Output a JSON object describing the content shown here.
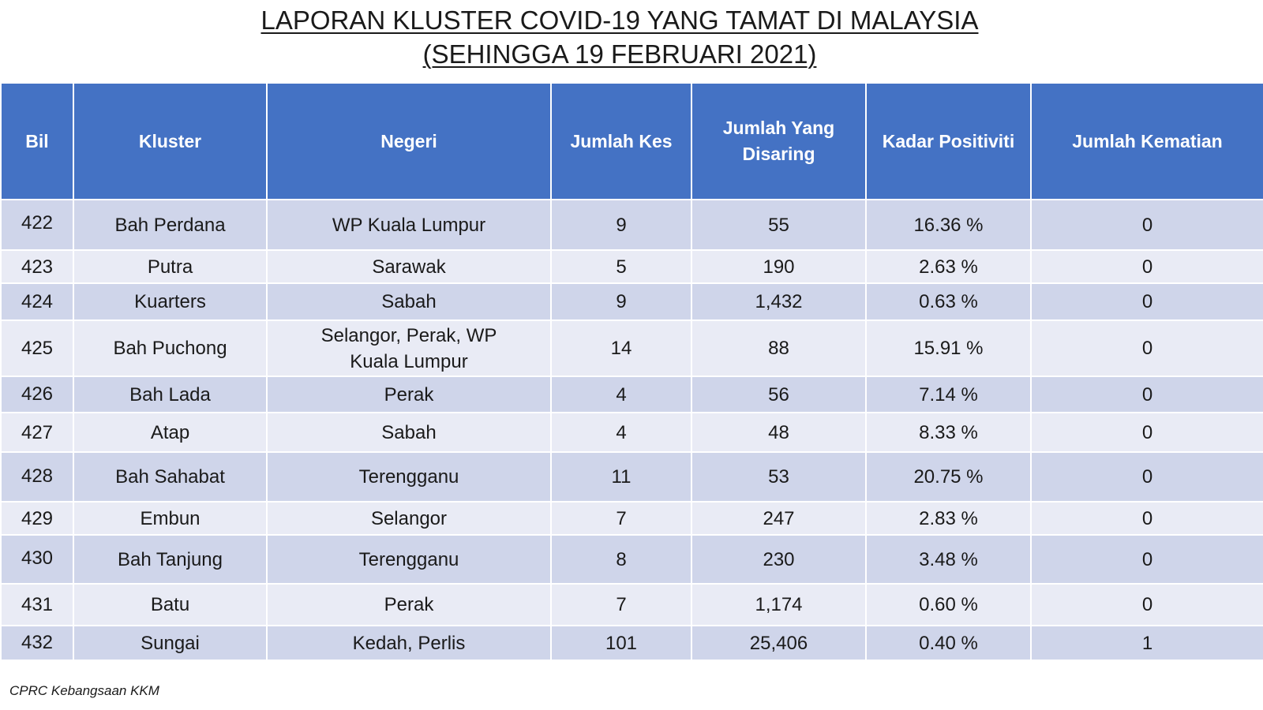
{
  "title": {
    "line1": "LAPORAN KLUSTER COVID-19 YANG TAMAT DI MALAYSIA",
    "line2": "(SEHINGGA 19 FEBRUARI 2021)"
  },
  "table": {
    "headers": [
      "Bil",
      "Kluster",
      "Negeri",
      "Jumlah Kes",
      "Jumlah Yang Disaring",
      "Kadar Positiviti",
      "Jumlah Kematian"
    ],
    "rows": [
      {
        "bil": "422",
        "kluster": "Bah Perdana",
        "negeri": "WP Kuala Lumpur",
        "kes": "9",
        "disaring": "55",
        "positiviti": "16.36 %",
        "kematian": "0"
      },
      {
        "bil": "423",
        "kluster": "Putra",
        "negeri": "Sarawak",
        "kes": "5",
        "disaring": "190",
        "positiviti": "2.63 %",
        "kematian": "0"
      },
      {
        "bil": "424",
        "kluster": "Kuarters",
        "negeri": "Sabah",
        "kes": "9",
        "disaring": "1,432",
        "positiviti": "0.63 %",
        "kematian": "0"
      },
      {
        "bil": "425",
        "kluster": "Bah Puchong",
        "negeri": "Selangor, Perak, WP Kuala Lumpur",
        "kes": "14",
        "disaring": "88",
        "positiviti": "15.91 %",
        "kematian": "0"
      },
      {
        "bil": "426",
        "kluster": "Bah Lada",
        "negeri": "Perak",
        "kes": "4",
        "disaring": "56",
        "positiviti": "7.14 %",
        "kematian": "0"
      },
      {
        "bil": "427",
        "kluster": "Atap",
        "negeri": "Sabah",
        "kes": "4",
        "disaring": "48",
        "positiviti": "8.33 %",
        "kematian": "0"
      },
      {
        "bil": "428",
        "kluster": "Bah Sahabat",
        "negeri": "Terengganu",
        "kes": "11",
        "disaring": "53",
        "positiviti": "20.75 %",
        "kematian": "0"
      },
      {
        "bil": "429",
        "kluster": "Embun",
        "negeri": "Selangor",
        "kes": "7",
        "disaring": "247",
        "positiviti": "2.83 %",
        "kematian": "0"
      },
      {
        "bil": "430",
        "kluster": "Bah Tanjung",
        "negeri": "Terengganu",
        "kes": "8",
        "disaring": "230",
        "positiviti": "3.48 %",
        "kematian": "0"
      },
      {
        "bil": "431",
        "kluster": "Batu",
        "negeri": "Perak",
        "kes": "7",
        "disaring": "1,174",
        "positiviti": "0.60 %",
        "kematian": "0"
      },
      {
        "bil": "432",
        "kluster": "Sungai",
        "negeri": "Kedah, Perlis",
        "kes": "101",
        "disaring": "25,406",
        "positiviti": "0.40 %",
        "kematian": "1"
      }
    ]
  },
  "footer": "CPRC Kebangsaan KKM",
  "colors": {
    "header_bg": "#4472c4",
    "row_dark": "#cfd5ea",
    "row_light": "#e9ebf5"
  }
}
